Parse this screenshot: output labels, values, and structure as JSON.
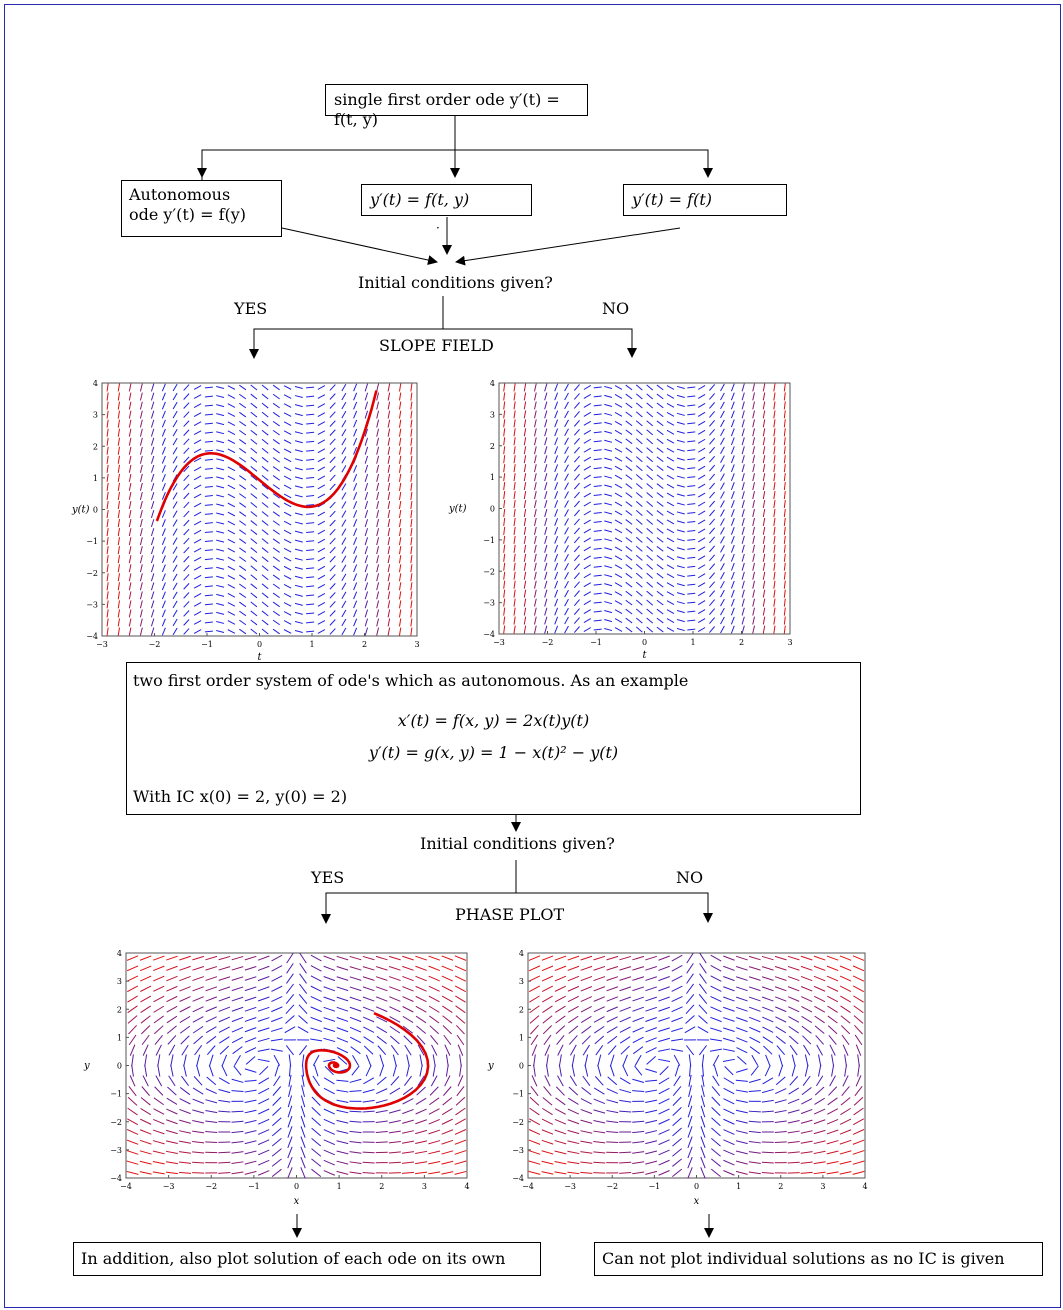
{
  "top_box": "single first order ode y′(t) = f(t, y)",
  "branches": {
    "autonomous_line1": "Autonomous",
    "autonomous_line2": "ode y′(t) = f(y)",
    "general": "y′(t) = f(t, y)",
    "t_only": "y′(t) = f(t)"
  },
  "dot": "·",
  "question1": "Initial conditions given?",
  "yes1": "YES",
  "no1": "NO",
  "slope_field_label": "SLOPE FIELD",
  "slope_plot": {
    "ylabel": "y(t)",
    "xlabel": "t",
    "xticks": [
      "−3",
      "−2",
      "−1",
      "0",
      "1",
      "2",
      "3"
    ],
    "yticks": [
      "−4",
      "−3",
      "−2",
      "−1",
      "0",
      "1",
      "2",
      "3",
      "4"
    ]
  },
  "system_box": {
    "intro": "two first order system of ode's which as autonomous. As an example",
    "eq1": "x′(t) = f(x, y) = 2x(t)y(t)",
    "eq2": "y′(t) = g(x, y) = 1 − x(t)² − y(t)",
    "ic": "With IC x(0) = 2, y(0) = 2)"
  },
  "question2": "Initial conditions given?",
  "yes2": "YES",
  "no2": "NO",
  "phase_plot_label": "PHASE PLOT",
  "phase_plot": {
    "ylabel": "y",
    "xlabel": "x",
    "xticks": [
      "−4",
      "−3",
      "−2",
      "−1",
      "0",
      "1",
      "2",
      "3",
      "4"
    ],
    "yticks": [
      "−4",
      "−3",
      "−2",
      "−1",
      "0",
      "1",
      "2",
      "3",
      "4"
    ]
  },
  "bottom_left": "In addition, also plot solution of each ode on its own",
  "bottom_right": "Can not plot individual solutions as no IC is given",
  "colors": {
    "field_center": "#2020e0",
    "field_edge": "#e01010",
    "solution": "#e00000",
    "frame": "#2a2ab0"
  }
}
